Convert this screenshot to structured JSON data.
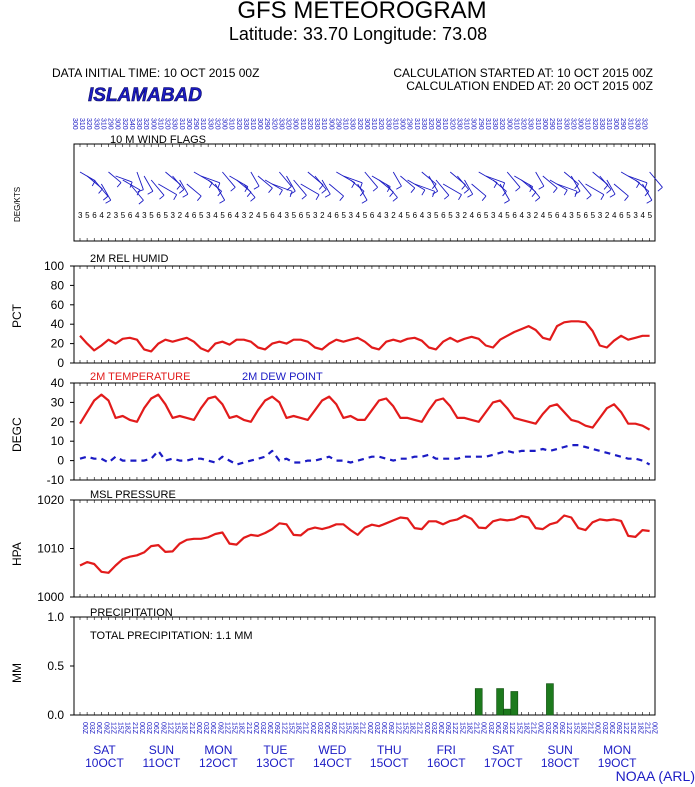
{
  "header": {
    "title": "GFS METEOROGRAM",
    "subtitle": "Latitude: 33.70 Longitude:  73.08",
    "initial_time": "DATA INITIAL TIME: 10 OCT 2015 00Z",
    "calc_started": "CALCULATION STARTED AT: 10 OCT 2015 00Z",
    "calc_ended": "CALCULATION ENDED AT: 20 OCT 2015 00Z",
    "station": "ISLAMABAD",
    "credit": "NOAA (ARL)"
  },
  "colors": {
    "temperature": "#e21b1b",
    "dew_point": "#1b1bc4",
    "humidity": "#e21b1b",
    "pressure": "#e21b1b",
    "precip_bar": "#1d7a1d",
    "blue_text": "#1b1bc4"
  },
  "days": [
    {
      "dow": "SAT",
      "date": "10OCT"
    },
    {
      "dow": "SUN",
      "date": "11OCT"
    },
    {
      "dow": "MON",
      "date": "12OCT"
    },
    {
      "dow": "TUE",
      "date": "13OCT"
    },
    {
      "dow": "WED",
      "date": "14OCT"
    },
    {
      "dow": "THU",
      "date": "15OCT"
    },
    {
      "dow": "FRI",
      "date": "16OCT"
    },
    {
      "dow": "SAT",
      "date": "17OCT"
    },
    {
      "dow": "SUN",
      "date": "18OCT"
    },
    {
      "dow": "MON",
      "date": "19OCT"
    }
  ],
  "chart_data": [
    {
      "panel": "wind",
      "type": "other",
      "title": "10 M  WIND FLAGS",
      "ylabel": "DEG/KTS",
      "wind_direction_deg": [
        300,
        310,
        320,
        330,
        310,
        290,
        300,
        320,
        340,
        330,
        320,
        300,
        310,
        320,
        330,
        310,
        300,
        290,
        310,
        330,
        320,
        300,
        310,
        320,
        330,
        310,
        300,
        290,
        320,
        330,
        320,
        300,
        310,
        320,
        330,
        310,
        300,
        290,
        310,
        330,
        320,
        300,
        310,
        320,
        330,
        310,
        300,
        290,
        310,
        330,
        320,
        300,
        310,
        320,
        330,
        310,
        300,
        290,
        310,
        330,
        320,
        300,
        310,
        320,
        330,
        310,
        300,
        290,
        310,
        330,
        320,
        300,
        310,
        320,
        330,
        310,
        300,
        290,
        310,
        330,
        320
      ],
      "wind_speed_kts": [
        3,
        5,
        6,
        4,
        2,
        3,
        5,
        6,
        4,
        3,
        5,
        6,
        5,
        3,
        2,
        4,
        6,
        5,
        3,
        4,
        5,
        6,
        4,
        3,
        2,
        4,
        5,
        6,
        4,
        3,
        5,
        6,
        5,
        3,
        2,
        4,
        6,
        5,
        3,
        4,
        5,
        6,
        4,
        3,
        2,
        4,
        5,
        6,
        4,
        3,
        5,
        6,
        5,
        3,
        2,
        4,
        6,
        5,
        3,
        4,
        5,
        6,
        4,
        3,
        2,
        4,
        5,
        6,
        4,
        3,
        5,
        6,
        5,
        3,
        2,
        4,
        6,
        5,
        3,
        4,
        5
      ]
    },
    {
      "panel": "humidity",
      "type": "line",
      "title": "2M REL HUMID",
      "ylabel": "PCT",
      "ylim": [
        0,
        100
      ],
      "yticks": [
        "0",
        "20",
        "40",
        "60",
        "80",
        "100"
      ],
      "series": [
        {
          "name": "2M REL HUMID",
          "values": [
            28,
            20,
            13,
            18,
            24,
            20,
            25,
            26,
            24,
            14,
            12,
            20,
            24,
            22,
            24,
            26,
            22,
            15,
            12,
            20,
            22,
            19,
            24,
            24,
            22,
            16,
            14,
            20,
            22,
            20,
            24,
            24,
            22,
            16,
            14,
            20,
            24,
            22,
            24,
            26,
            22,
            16,
            14,
            22,
            24,
            22,
            25,
            26,
            23,
            16,
            14,
            22,
            26,
            22,
            25,
            27,
            25,
            18,
            16,
            24,
            28,
            32,
            35,
            38,
            34,
            26,
            24,
            38,
            42,
            43,
            43,
            42,
            33,
            18,
            16,
            23,
            28,
            24,
            26,
            28,
            28
          ]
        }
      ]
    },
    {
      "panel": "temperature",
      "type": "line",
      "ylabel": "DEGC",
      "ylim": [
        -10,
        40
      ],
      "yticks": [
        "-10",
        "0",
        "10",
        "20",
        "30",
        "40"
      ],
      "series": [
        {
          "name": "2M TEMPERATURE",
          "values": [
            19,
            25,
            31,
            34,
            31,
            22,
            23,
            21,
            20,
            27,
            32,
            34,
            29,
            22,
            23,
            22,
            21,
            27,
            32,
            33,
            29,
            22,
            23,
            21,
            20,
            26,
            31,
            33,
            30,
            22,
            23,
            22,
            21,
            26,
            31,
            33,
            29,
            22,
            23,
            21,
            21,
            26,
            31,
            32,
            28,
            22,
            22,
            21,
            20,
            26,
            31,
            32,
            28,
            22,
            22,
            21,
            20,
            25,
            30,
            31,
            27,
            22,
            21,
            20,
            19,
            24,
            28,
            29,
            25,
            21,
            20,
            18,
            17,
            22,
            27,
            29,
            25,
            19,
            19,
            18,
            16
          ]
        },
        {
          "name": "DEW POINT",
          "values": [
            1,
            2,
            1,
            1,
            -1,
            2,
            0,
            0,
            0,
            0,
            1,
            5,
            0,
            1,
            0,
            0,
            1,
            1,
            0,
            -1,
            2,
            0,
            -2,
            -1,
            0,
            1,
            2,
            5,
            0,
            1,
            -1,
            -1,
            0,
            0,
            1,
            2,
            0,
            0,
            -1,
            0,
            1,
            2,
            2,
            1,
            0,
            1,
            1,
            2,
            2,
            3,
            1,
            1,
            1,
            1,
            2,
            2,
            2,
            2,
            3,
            4,
            5,
            4,
            5,
            5,
            5,
            6,
            5,
            6,
            7,
            8,
            8,
            7,
            6,
            5,
            4,
            3,
            2,
            1,
            1,
            0,
            -2
          ]
        }
      ]
    },
    {
      "panel": "pressure",
      "type": "line",
      "title": "MSL PRESSURE",
      "ylabel": "HPA",
      "ylim": [
        1000,
        1020
      ],
      "yticks": [
        "1000",
        "1010",
        "1020"
      ],
      "series": [
        {
          "name": "MSL PRESSURE",
          "values": [
            1006.5,
            1007.2,
            1006.8,
            1005.2,
            1005.0,
            1006.5,
            1007.8,
            1008.3,
            1008.6,
            1009.2,
            1010.5,
            1010.7,
            1009.3,
            1009.4,
            1011.0,
            1011.8,
            1012.0,
            1012.0,
            1012.3,
            1013.0,
            1013.3,
            1011.0,
            1010.8,
            1012.2,
            1012.8,
            1012.6,
            1013.2,
            1014.0,
            1015.2,
            1015.0,
            1012.8,
            1012.7,
            1013.9,
            1014.3,
            1014.0,
            1014.4,
            1015.0,
            1015.0,
            1013.8,
            1012.8,
            1014.3,
            1014.9,
            1014.6,
            1015.2,
            1015.8,
            1016.4,
            1016.2,
            1014.2,
            1014.0,
            1015.6,
            1015.6,
            1015.0,
            1015.7,
            1016.0,
            1016.8,
            1016.1,
            1014.3,
            1014.2,
            1015.6,
            1016.0,
            1015.8,
            1016.0,
            1016.7,
            1016.4,
            1014.2,
            1014.0,
            1015.0,
            1015.4,
            1016.8,
            1016.4,
            1014.2,
            1013.8,
            1015.4,
            1016.0,
            1015.8,
            1016.0,
            1015.7,
            1012.6,
            1012.4,
            1013.8,
            1013.6
          ]
        }
      ]
    },
    {
      "panel": "precipitation",
      "type": "bar",
      "title": "PRECIPITATION",
      "ylabel": "MM",
      "ylim": [
        0,
        1.0
      ],
      "yticks": [
        "0.0",
        "0.5",
        "1.0"
      ],
      "annotation": "TOTAL PRECIPITATION:   1.1 MM",
      "bars": [
        {
          "index": 56,
          "value": 0.27
        },
        {
          "index": 59,
          "value": 0.27
        },
        {
          "index": 60,
          "value": 0.06
        },
        {
          "index": 61,
          "value": 0.24
        },
        {
          "index": 66,
          "value": 0.32
        }
      ]
    }
  ]
}
